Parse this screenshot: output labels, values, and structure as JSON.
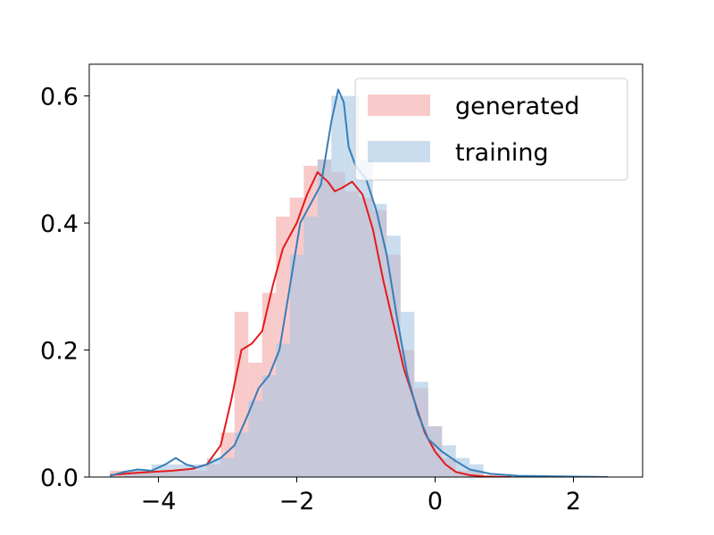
{
  "chart_data": {
    "type": "bar",
    "title": "",
    "xlabel": "",
    "ylabel": "",
    "xlim": [
      -5,
      3
    ],
    "ylim": [
      0,
      0.65
    ],
    "grid": false,
    "legend_placement": "top-right",
    "x_ticks": [
      {
        "value": -4,
        "label": "−4"
      },
      {
        "value": -2,
        "label": "−2"
      },
      {
        "value": 0,
        "label": "0"
      },
      {
        "value": 2,
        "label": "2"
      }
    ],
    "y_ticks": [
      {
        "value": 0.0,
        "label": "0.0"
      },
      {
        "value": 0.2,
        "label": "0.2"
      },
      {
        "value": 0.4,
        "label": "0.4"
      },
      {
        "value": 0.6,
        "label": "0.6"
      }
    ],
    "bin_width": 0.2,
    "series": [
      {
        "name": "generated",
        "color": "#f4a6a6",
        "line_color": "#e41a1c",
        "bins_start": [
          -4.7,
          -4.5,
          -4.3,
          -4.1,
          -3.9,
          -3.7,
          -3.5,
          -3.3,
          -3.1,
          -2.9,
          -2.7,
          -2.5,
          -2.3,
          -2.1,
          -1.9,
          -1.7,
          -1.5,
          -1.3,
          -1.1,
          -0.9,
          -0.7,
          -0.5,
          -0.3,
          -0.1,
          0.1,
          0.3,
          0.5
        ],
        "values": [
          0.01,
          0.01,
          0.01,
          0.01,
          0.01,
          0.01,
          0.01,
          0.02,
          0.07,
          0.26,
          0.18,
          0.29,
          0.41,
          0.44,
          0.49,
          0.5,
          0.48,
          0.45,
          0.44,
          0.42,
          0.35,
          0.2,
          0.14,
          0.08,
          0.03,
          0.01,
          0.01
        ],
        "density_x": [
          -4.7,
          -4.4,
          -4.1,
          -3.8,
          -3.5,
          -3.3,
          -3.1,
          -2.95,
          -2.8,
          -2.65,
          -2.5,
          -2.35,
          -2.2,
          -2.0,
          -1.85,
          -1.7,
          -1.55,
          -1.45,
          -1.35,
          -1.2,
          -1.05,
          -0.9,
          -0.75,
          -0.6,
          -0.45,
          -0.3,
          -0.15,
          0.0,
          0.15,
          0.3,
          0.5,
          0.7,
          0.9,
          1.1
        ],
        "density_y": [
          0.003,
          0.006,
          0.008,
          0.01,
          0.013,
          0.02,
          0.05,
          0.12,
          0.2,
          0.21,
          0.23,
          0.3,
          0.36,
          0.4,
          0.445,
          0.48,
          0.465,
          0.45,
          0.455,
          0.465,
          0.445,
          0.39,
          0.31,
          0.24,
          0.17,
          0.12,
          0.07,
          0.04,
          0.02,
          0.008,
          0.003,
          0.001,
          0.0005,
          0.0
        ]
      },
      {
        "name": "training",
        "color": "#a7c7e3",
        "line_color": "#377eb8",
        "bins_start": [
          -4.7,
          -4.5,
          -4.3,
          -4.1,
          -3.9,
          -3.7,
          -3.5,
          -3.3,
          -3.1,
          -2.9,
          -2.7,
          -2.5,
          -2.3,
          -2.1,
          -1.9,
          -1.7,
          -1.5,
          -1.3,
          -1.1,
          -0.9,
          -0.7,
          -0.5,
          -0.3,
          -0.1,
          0.1,
          0.3,
          0.5
        ],
        "values": [
          0.0,
          0.01,
          0.01,
          0.02,
          0.02,
          0.02,
          0.02,
          0.03,
          0.03,
          0.07,
          0.12,
          0.16,
          0.21,
          0.35,
          0.41,
          0.5,
          0.6,
          0.6,
          0.5,
          0.43,
          0.38,
          0.26,
          0.15,
          0.08,
          0.05,
          0.03,
          0.02
        ],
        "density_x": [
          -4.7,
          -4.5,
          -4.3,
          -4.1,
          -3.9,
          -3.75,
          -3.6,
          -3.45,
          -3.3,
          -3.1,
          -2.9,
          -2.7,
          -2.55,
          -2.4,
          -2.25,
          -2.1,
          -1.95,
          -1.8,
          -1.65,
          -1.5,
          -1.4,
          -1.32,
          -1.25,
          -1.15,
          -1.0,
          -0.85,
          -0.7,
          -0.55,
          -0.4,
          -0.25,
          -0.1,
          0.1,
          0.3,
          0.5,
          0.8,
          1.2,
          1.8,
          2.5
        ],
        "density_y": [
          0.002,
          0.008,
          0.012,
          0.01,
          0.02,
          0.03,
          0.02,
          0.015,
          0.02,
          0.03,
          0.05,
          0.1,
          0.14,
          0.16,
          0.2,
          0.3,
          0.4,
          0.43,
          0.46,
          0.56,
          0.61,
          0.59,
          0.52,
          0.49,
          0.47,
          0.42,
          0.35,
          0.25,
          0.16,
          0.1,
          0.06,
          0.04,
          0.025,
          0.012,
          0.005,
          0.002,
          0.001,
          0.0
        ]
      }
    ]
  }
}
